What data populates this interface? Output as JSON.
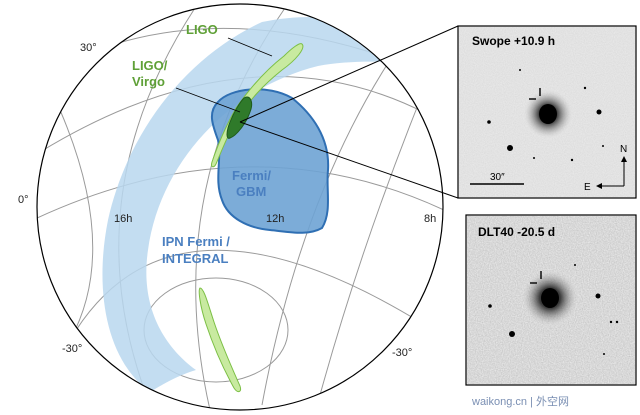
{
  "sky_map": {
    "labels": {
      "dec_plus30": "30°",
      "dec_0": "0°",
      "dec_minus30_left": "-30°",
      "dec_minus30_right": "-30°",
      "ra_16h": "16h",
      "ra_12h": "12h",
      "ra_8h": "8h"
    },
    "regions": {
      "ligo": "LIGO",
      "ligo_virgo_line1": "LIGO/",
      "ligo_virgo_line2": "Virgo",
      "fermi_gbm_line1": "Fermi/",
      "fermi_gbm_line2": "GBM",
      "ipn_line1": "IPN Fermi /",
      "ipn_line2": "INTEGRAL"
    },
    "colors": {
      "ipn_band": "#b9d7ee",
      "fermi_fill": "#6ea3d4",
      "fermi_stroke": "#2f6fb3",
      "ligo_fill": "#c8eaa0",
      "ligo_stroke": "#7cbf45",
      "ligo_virgo_fill": "#2f7a2a",
      "label_green": "#5fa037",
      "label_blue": "#4a7fc0"
    }
  },
  "panels": {
    "top": {
      "title": "Swope +10.9 h",
      "scale_label": "30″",
      "north_label": "N",
      "east_label": "E"
    },
    "bottom": {
      "title": "DLT40 -20.5 d"
    }
  },
  "watermark": {
    "text": "waikong.cn | 外空网"
  }
}
